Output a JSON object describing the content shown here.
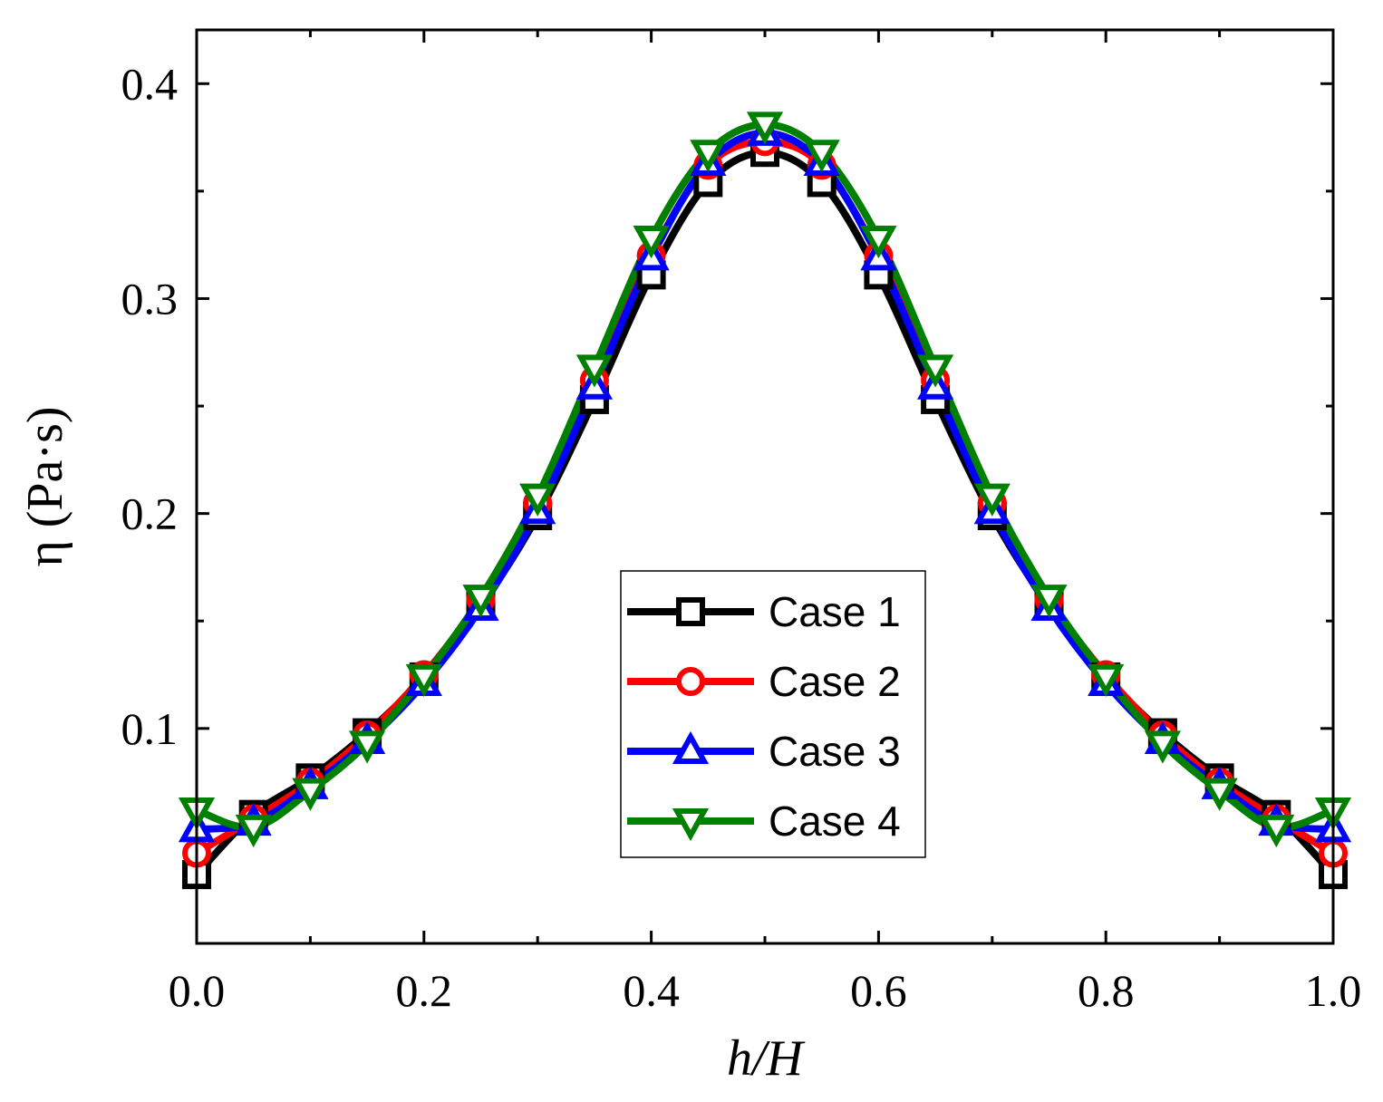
{
  "chart_data": {
    "type": "line",
    "title": "",
    "xlabel": "h/H",
    "ylabel": "η (Pa·s)",
    "xlim": [
      0.0,
      1.0
    ],
    "ylim": [
      0.0,
      0.425
    ],
    "xticks": [
      "0.0",
      "0.2",
      "0.4",
      "0.6",
      "0.8",
      "1.0"
    ],
    "yticks": [
      "0.1",
      "0.2",
      "0.3",
      "0.4"
    ],
    "legend_position": "center-bottom",
    "x": [
      0.0,
      0.05,
      0.1,
      0.15,
      0.2,
      0.25,
      0.3,
      0.35,
      0.4,
      0.45,
      0.5,
      0.55,
      0.6,
      0.65,
      0.7,
      0.75,
      0.8,
      0.85,
      0.9,
      0.95,
      1.0
    ],
    "series": [
      {
        "name": "Case 1",
        "color": "#000000",
        "marker": "square",
        "values": [
          0.032,
          0.06,
          0.077,
          0.098,
          0.124,
          0.157,
          0.199,
          0.253,
          0.311,
          0.354,
          0.368,
          0.354,
          0.311,
          0.253,
          0.199,
          0.157,
          0.124,
          0.098,
          0.077,
          0.06,
          0.032
        ]
      },
      {
        "name": "Case 2",
        "color": "#ff0000",
        "marker": "circle",
        "values": [
          0.042,
          0.058,
          0.075,
          0.097,
          0.125,
          0.16,
          0.205,
          0.262,
          0.32,
          0.362,
          0.373,
          0.362,
          0.32,
          0.262,
          0.205,
          0.16,
          0.125,
          0.097,
          0.075,
          0.058,
          0.042
        ]
      },
      {
        "name": "Case 3",
        "color": "#0000ff",
        "marker": "triangle-up",
        "values": [
          0.053,
          0.056,
          0.073,
          0.094,
          0.121,
          0.156,
          0.201,
          0.259,
          0.319,
          0.363,
          0.377,
          0.363,
          0.319,
          0.259,
          0.201,
          0.156,
          0.121,
          0.094,
          0.073,
          0.056,
          0.053
        ]
      },
      {
        "name": "Case 4",
        "color": "#008000",
        "marker": "triangle-down",
        "values": [
          0.062,
          0.054,
          0.071,
          0.093,
          0.124,
          0.161,
          0.208,
          0.268,
          0.328,
          0.368,
          0.381,
          0.368,
          0.328,
          0.268,
          0.208,
          0.161,
          0.124,
          0.093,
          0.071,
          0.054,
          0.062
        ]
      }
    ]
  }
}
